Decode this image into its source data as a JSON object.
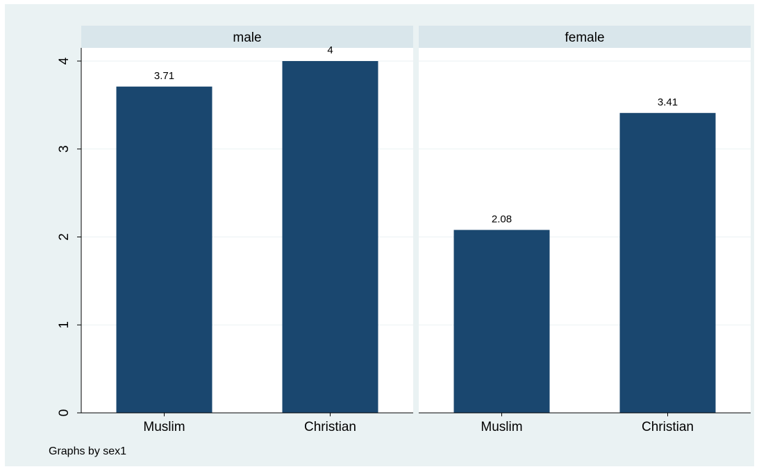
{
  "chart_data": {
    "type": "bar",
    "panels": [
      {
        "title": "male",
        "categories": [
          "Muslim",
          "Christian"
        ],
        "values": [
          3.71,
          4
        ],
        "value_labels": [
          "3.71",
          "4"
        ]
      },
      {
        "title": "female",
        "categories": [
          "Muslim",
          "Christian"
        ],
        "values": [
          2.08,
          3.41
        ],
        "value_labels": [
          "2.08",
          "3.41"
        ]
      }
    ],
    "ylim": [
      0,
      4
    ],
    "y_ticks": [
      0,
      1,
      2,
      3,
      4
    ],
    "y_tick_labels": [
      "0",
      "1",
      "2",
      "3",
      "4"
    ],
    "grid": true,
    "note": "Graphs by sex1"
  },
  "colors": {
    "outer_background": "#eaf2f3",
    "plot_background": "#ffffff",
    "strip_background": "#d9e6eb",
    "bar": "#1a476f",
    "gridline": "#eaf2f3",
    "axis": "#000000",
    "text": "#000000"
  }
}
